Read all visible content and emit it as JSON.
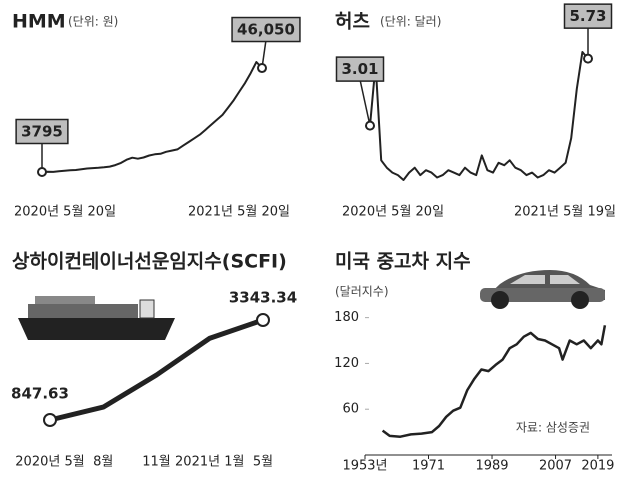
{
  "chart_data": [
    {
      "type": "line",
      "title": "HMM",
      "subtitle": "(단위: 원)",
      "color": "#222",
      "categories": [
        "2020년 5월 20일",
        null,
        null,
        null,
        null,
        null,
        null,
        null,
        null,
        null,
        null,
        null,
        null,
        null,
        null,
        null,
        null,
        null,
        null,
        null,
        null,
        null,
        null,
        null,
        null,
        null,
        null,
        null,
        null,
        null,
        null,
        null,
        null,
        null,
        null,
        null,
        null,
        null,
        null,
        "2021년 5월 20일"
      ],
      "values": [
        3795,
        3900,
        3850,
        4100,
        4300,
        4500,
        4600,
        4900,
        5200,
        5400,
        5500,
        5700,
        6000,
        6600,
        7500,
        8800,
        9600,
        9200,
        9700,
        10500,
        11000,
        11200,
        12000,
        12500,
        13000,
        14500,
        16000,
        17500,
        19000,
        21000,
        23000,
        25000,
        27000,
        30000,
        33000,
        36500,
        40000,
        44000,
        48500,
        46050
      ],
      "value_labels": [
        "3795",
        null,
        null,
        null,
        null,
        null,
        null,
        null,
        null,
        null,
        null,
        null,
        null,
        null,
        null,
        null,
        null,
        null,
        null,
        null,
        null,
        null,
        null,
        null,
        null,
        null,
        null,
        null,
        null,
        null,
        null,
        null,
        null,
        null,
        null,
        null,
        null,
        null,
        null,
        "46,050"
      ]
    },
    {
      "type": "line",
      "title": "허츠",
      "subtitle": "(단위: 달러)",
      "color": "#222",
      "categories": [
        "2020년 5월 20일",
        null,
        null,
        null,
        null,
        null,
        null,
        null,
        null,
        null,
        null,
        null,
        null,
        null,
        null,
        null,
        null,
        null,
        null,
        null,
        null,
        null,
        null,
        null,
        null,
        null,
        null,
        null,
        null,
        null,
        null,
        null,
        null,
        null,
        null,
        null,
        null,
        null,
        null,
        "2021년 5월 19일"
      ],
      "values": [
        3.01,
        5.5,
        1.6,
        1.3,
        1.1,
        1.0,
        0.8,
        1.1,
        1.3,
        1.0,
        1.2,
        1.1,
        0.9,
        1.0,
        1.2,
        1.1,
        1.0,
        1.3,
        1.1,
        1.0,
        1.8,
        1.2,
        1.1,
        1.5,
        1.4,
        1.6,
        1.3,
        1.2,
        1.0,
        1.1,
        0.9,
        1.0,
        1.2,
        1.1,
        1.3,
        1.5,
        2.5,
        4.5,
        6.0,
        5.73
      ],
      "value_labels": [
        "3.01",
        null,
        null,
        null,
        null,
        null,
        null,
        null,
        null,
        null,
        null,
        null,
        null,
        null,
        null,
        null,
        null,
        null,
        null,
        null,
        null,
        null,
        null,
        null,
        null,
        null,
        null,
        null,
        null,
        null,
        null,
        null,
        null,
        null,
        null,
        null,
        null,
        null,
        null,
        "5.73"
      ]
    },
    {
      "type": "line",
      "title": "상하이컨테이너선운임지수(SCFI)",
      "color": "#222",
      "categories": [
        "2020년 5월",
        "8월",
        "11월",
        "2021년 1월",
        "5월"
      ],
      "values": [
        847.63,
        1170,
        1970,
        2890,
        3343.34
      ],
      "value_labels": [
        "847.63",
        null,
        null,
        null,
        "3343.34"
      ]
    },
    {
      "type": "line",
      "title": "미국 중고차 지수",
      "subtitle": "(달러지수)",
      "note": "자료: 삼성증권",
      "color": "#222",
      "x": [
        1958,
        1960,
        1963,
        1966,
        1969,
        1972,
        1974,
        1976,
        1978,
        1980,
        1982,
        1984,
        1986,
        1988,
        1990,
        1992,
        1994,
        1996,
        1998,
        2000,
        2002,
        2004,
        2006,
        2008,
        2009,
        2011,
        2013,
        2015,
        2017,
        2019,
        2020,
        2021
      ],
      "values": [
        32,
        25,
        24,
        27,
        28,
        30,
        38,
        50,
        58,
        62,
        85,
        100,
        112,
        110,
        118,
        125,
        140,
        145,
        155,
        160,
        152,
        150,
        145,
        140,
        125,
        150,
        145,
        150,
        140,
        150,
        145,
        170
      ],
      "xlim": [
        1953,
        2023
      ],
      "ylim": [
        0,
        190
      ],
      "xticks": [
        {
          "value": 1953,
          "label": "1953년"
        },
        1971,
        1989,
        2007,
        2019
      ],
      "yticks": [
        60,
        120,
        180
      ],
      "grid": false
    }
  ]
}
